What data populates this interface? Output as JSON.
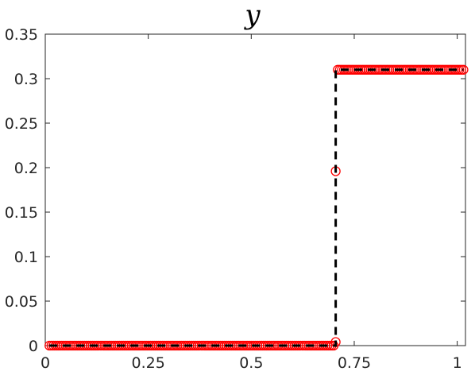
{
  "chart_data": {
    "type": "line",
    "title": "y",
    "xlabel": "",
    "ylabel": "",
    "xlim": [
      0,
      1.02
    ],
    "ylim": [
      0,
      0.35
    ],
    "x_ticks": [
      0,
      0.25,
      0.5,
      0.75,
      1
    ],
    "x_tick_labels": [
      "0",
      "0.25",
      "0.5",
      "0.75",
      "1"
    ],
    "y_ticks": [
      0,
      0.05,
      0.1,
      0.15,
      0.2,
      0.25,
      0.3,
      0.35
    ],
    "y_tick_labels": [
      "0",
      "0.05",
      "0.1",
      "0.15",
      "0.2",
      "0.25",
      "0.3",
      "0.35"
    ],
    "grid": false,
    "legend": "none",
    "series": [
      {
        "style": "red circle markers",
        "color": "#ff0000",
        "marker": "circle",
        "segments": [
          {
            "x_start": 0.01,
            "x_end": 0.7,
            "x_step": 0.005,
            "y": 0
          },
          {
            "x_start": 0.71,
            "x_end": 1.015,
            "x_step": 0.005,
            "y": 0.31
          }
        ],
        "points": [
          {
            "x": 0.705,
            "y": 0.004
          },
          {
            "x": 0.705,
            "y": 0.196
          }
        ]
      },
      {
        "style": "black dashed line",
        "color": "#000000",
        "marker": "none",
        "x": [
          0.01,
          0.705,
          0.705,
          1.015
        ],
        "y": [
          0,
          0,
          0.31,
          0.31
        ]
      }
    ]
  }
}
